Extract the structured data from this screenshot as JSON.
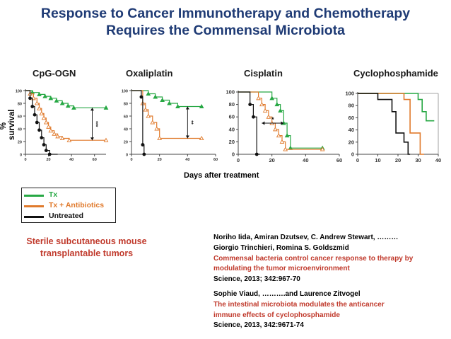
{
  "title_line1": "Response to Cancer Immunotherapy and Chemotherapy",
  "title_line2": "Requires  the Commensal Microbiota",
  "y_axis_label": "% survival",
  "x_axis_label": "Days after treatment",
  "colors": {
    "tx": "#27a844",
    "tx_antibiotics": "#e07a2c",
    "untreated": "#111111",
    "title": "#1f3b75",
    "accent_red": "#c0392b"
  },
  "legend": {
    "tx": "Tx",
    "tx_antibiotics": "Tx + Antibiotics",
    "untreated": "Untreated"
  },
  "sterile_text": "Sterile subcutaneous mouse transplantable tumors",
  "references": [
    {
      "authors1": "Noriho Iida, Amiran Dzutsev, C. Andrew Stewart, ………",
      "authors2": "Giorgio Trinchieri, Romina S. Goldszmid",
      "title1": "Commensal bacteria control cancer response to therapy by",
      "title2": "modulating the tumor microenvironment",
      "journal": "Science, 2013; 342:967-70"
    },
    {
      "authors1": "Sophie Viaud, ……….and Laurence Zitvogel",
      "title1": "The intestinal microbiota modulates the anticancer",
      "title2": "immune effects of cyclophosphamide",
      "journal": "Science, 2013, 342:9671-74"
    }
  ],
  "chart_data": [
    {
      "type": "line",
      "step": true,
      "title": "CpG-OGN",
      "xlim": [
        0,
        70
      ],
      "ylim": [
        0,
        100
      ],
      "xticks": [
        "0",
        "20",
        "40",
        "60"
      ],
      "yticks": [
        "0",
        "20",
        "40",
        "60",
        "80",
        "100"
      ],
      "significance": "***",
      "series": [
        {
          "name": "Tx",
          "values": [
            [
              0,
              100
            ],
            [
              6,
              100
            ],
            [
              6,
              97
            ],
            [
              12,
              97
            ],
            [
              12,
              94
            ],
            [
              17,
              94
            ],
            [
              17,
              91
            ],
            [
              22,
              91
            ],
            [
              22,
              88
            ],
            [
              27,
              88
            ],
            [
              27,
              84
            ],
            [
              32,
              84
            ],
            [
              32,
              80
            ],
            [
              37,
              80
            ],
            [
              37,
              76
            ],
            [
              42,
              76
            ],
            [
              42,
              73
            ],
            [
              70,
              73
            ]
          ]
        },
        {
          "name": "Tx + Antibiotics",
          "values": [
            [
              0,
              100
            ],
            [
              4,
              100
            ],
            [
              4,
              95
            ],
            [
              7,
              95
            ],
            [
              7,
              88
            ],
            [
              10,
              88
            ],
            [
              10,
              80
            ],
            [
              12,
              80
            ],
            [
              12,
              72
            ],
            [
              14,
              72
            ],
            [
              14,
              64
            ],
            [
              16,
              64
            ],
            [
              16,
              57
            ],
            [
              18,
              57
            ],
            [
              18,
              50
            ],
            [
              20,
              50
            ],
            [
              20,
              43
            ],
            [
              22,
              43
            ],
            [
              22,
              37
            ],
            [
              25,
              37
            ],
            [
              25,
              32
            ],
            [
              28,
              32
            ],
            [
              28,
              28
            ],
            [
              32,
              28
            ],
            [
              32,
              25
            ],
            [
              38,
              25
            ],
            [
              38,
              22
            ],
            [
              70,
              22
            ]
          ]
        },
        {
          "name": "Untreated",
          "values": [
            [
              0,
              100
            ],
            [
              4,
              100
            ],
            [
              4,
              88
            ],
            [
              6,
              88
            ],
            [
              6,
              75
            ],
            [
              8,
              75
            ],
            [
              8,
              62
            ],
            [
              10,
              62
            ],
            [
              10,
              50
            ],
            [
              12,
              50
            ],
            [
              12,
              38
            ],
            [
              14,
              38
            ],
            [
              14,
              26
            ],
            [
              16,
              26
            ],
            [
              16,
              15
            ],
            [
              18,
              15
            ],
            [
              18,
              6
            ],
            [
              21,
              6
            ],
            [
              21,
              0
            ],
            [
              28,
              0
            ]
          ]
        }
      ]
    },
    {
      "type": "line",
      "step": true,
      "title": "Oxaliplatin",
      "xlim": [
        0,
        60
      ],
      "ylim": [
        0,
        100
      ],
      "xticks": [
        "0",
        "20",
        "40",
        "60"
      ],
      "yticks": [
        "0",
        "20",
        "40",
        "60",
        "80",
        "100"
      ],
      "significance": "**",
      "series": [
        {
          "name": "Tx",
          "values": [
            [
              0,
              100
            ],
            [
              12,
              100
            ],
            [
              12,
              95
            ],
            [
              17,
              95
            ],
            [
              17,
              90
            ],
            [
              22,
              90
            ],
            [
              22,
              85
            ],
            [
              27,
              85
            ],
            [
              27,
              80
            ],
            [
              33,
              80
            ],
            [
              33,
              75
            ],
            [
              50,
              75
            ]
          ]
        },
        {
          "name": "Tx + Antibiotics",
          "values": [
            [
              0,
              100
            ],
            [
              8,
              100
            ],
            [
              8,
              80
            ],
            [
              10,
              80
            ],
            [
              10,
              70
            ],
            [
              12,
              70
            ],
            [
              12,
              60
            ],
            [
              15,
              60
            ],
            [
              15,
              50
            ],
            [
              18,
              50
            ],
            [
              18,
              40
            ],
            [
              20,
              40
            ],
            [
              20,
              25
            ],
            [
              50,
              25
            ]
          ]
        },
        {
          "name": "Untreated",
          "values": [
            [
              0,
              100
            ],
            [
              7,
              100
            ],
            [
              7,
              90
            ],
            [
              8,
              90
            ],
            [
              8,
              15
            ],
            [
              9,
              15
            ],
            [
              9,
              0
            ],
            [
              10,
              0
            ]
          ]
        }
      ]
    },
    {
      "type": "line",
      "step": true,
      "title": "Cisplatin",
      "xlim": [
        0,
        60
      ],
      "ylim": [
        0,
        100
      ],
      "xticks": [
        "0",
        "20",
        "40",
        "60"
      ],
      "yticks": [
        "0",
        "20",
        "40",
        "60",
        "80",
        "100"
      ],
      "significance": "*",
      "series": [
        {
          "name": "Tx",
          "values": [
            [
              0,
              100
            ],
            [
              20,
              100
            ],
            [
              20,
              90
            ],
            [
              23,
              90
            ],
            [
              23,
              80
            ],
            [
              25,
              80
            ],
            [
              25,
              70
            ],
            [
              27,
              70
            ],
            [
              27,
              50
            ],
            [
              29,
              50
            ],
            [
              29,
              30
            ],
            [
              31,
              30
            ],
            [
              31,
              10
            ],
            [
              50,
              10
            ]
          ]
        },
        {
          "name": "Tx + Antibiotics",
          "values": [
            [
              0,
              100
            ],
            [
              12,
              100
            ],
            [
              12,
              90
            ],
            [
              14,
              90
            ],
            [
              14,
              80
            ],
            [
              16,
              80
            ],
            [
              16,
              70
            ],
            [
              18,
              70
            ],
            [
              18,
              60
            ],
            [
              20,
              60
            ],
            [
              20,
              50
            ],
            [
              22,
              50
            ],
            [
              22,
              40
            ],
            [
              24,
              40
            ],
            [
              24,
              30
            ],
            [
              26,
              30
            ],
            [
              26,
              20
            ],
            [
              28,
              20
            ],
            [
              28,
              8
            ],
            [
              50,
              8
            ]
          ]
        },
        {
          "name": "Untreated",
          "values": [
            [
              0,
              100
            ],
            [
              7,
              100
            ],
            [
              7,
              80
            ],
            [
              9,
              80
            ],
            [
              9,
              60
            ],
            [
              11,
              60
            ],
            [
              11,
              0
            ],
            [
              13,
              0
            ]
          ]
        }
      ]
    },
    {
      "type": "line",
      "step": true,
      "title": "Cyclophosphamide",
      "xlim": [
        0,
        40
      ],
      "ylim": [
        0,
        100
      ],
      "xticks": [
        "0",
        "10",
        "20",
        "30",
        "40"
      ],
      "yticks": [
        "0",
        "20",
        "40",
        "60",
        "80",
        "100"
      ],
      "significance": "",
      "series": [
        {
          "name": "Tx",
          "values": [
            [
              0,
              100
            ],
            [
              30,
              100
            ],
            [
              30,
              90
            ],
            [
              32,
              90
            ],
            [
              32,
              70
            ],
            [
              34,
              70
            ],
            [
              34,
              55
            ],
            [
              38,
              55
            ]
          ]
        },
        {
          "name": "Tx + Antibiotics",
          "values": [
            [
              0,
              100
            ],
            [
              23,
              100
            ],
            [
              23,
              90
            ],
            [
              26,
              90
            ],
            [
              26,
              35
            ],
            [
              31,
              35
            ],
            [
              31,
              0
            ],
            [
              33,
              0
            ]
          ]
        },
        {
          "name": "Untreated",
          "values": [
            [
              0,
              100
            ],
            [
              10,
              100
            ],
            [
              10,
              90
            ],
            [
              17,
              90
            ],
            [
              17,
              70
            ],
            [
              19,
              70
            ],
            [
              19,
              35
            ],
            [
              23,
              35
            ],
            [
              23,
              20
            ],
            [
              25,
              20
            ],
            [
              25,
              0
            ],
            [
              26,
              0
            ]
          ]
        }
      ]
    }
  ]
}
